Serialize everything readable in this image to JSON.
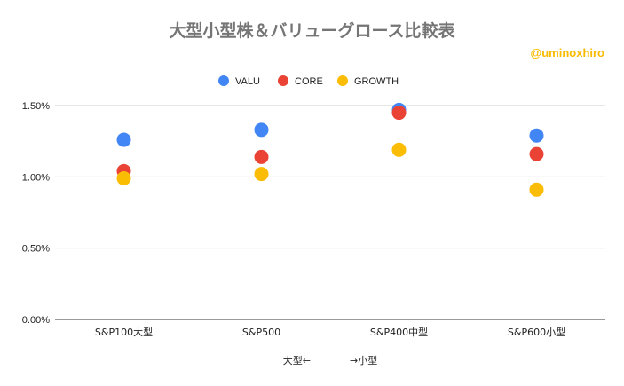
{
  "chart_data": {
    "type": "scatter",
    "title": "大型小型株＆バリューグロース比較表",
    "annotation": "@uminoxhiro",
    "xlabel": "大型←　　　　→小型",
    "ylabel": "",
    "categories": [
      "S&P100大型",
      "S&P500",
      "S&P400中型",
      "S&P600小型"
    ],
    "y_ticks": [
      "0.00%",
      "0.50%",
      "1.00%",
      "1.50%"
    ],
    "ylim": [
      0,
      1.5
    ],
    "y_unit": "%",
    "grid": true,
    "legend": "top",
    "series": [
      {
        "name": "VALU",
        "color": "#4285f4",
        "values": [
          1.26,
          1.33,
          1.47,
          1.29
        ]
      },
      {
        "name": "CORE",
        "color": "#ea4335",
        "values": [
          1.04,
          1.14,
          1.45,
          1.16
        ]
      },
      {
        "name": "GROWTH",
        "color": "#fbbc04",
        "values": [
          0.99,
          1.02,
          1.19,
          0.91
        ]
      }
    ]
  }
}
